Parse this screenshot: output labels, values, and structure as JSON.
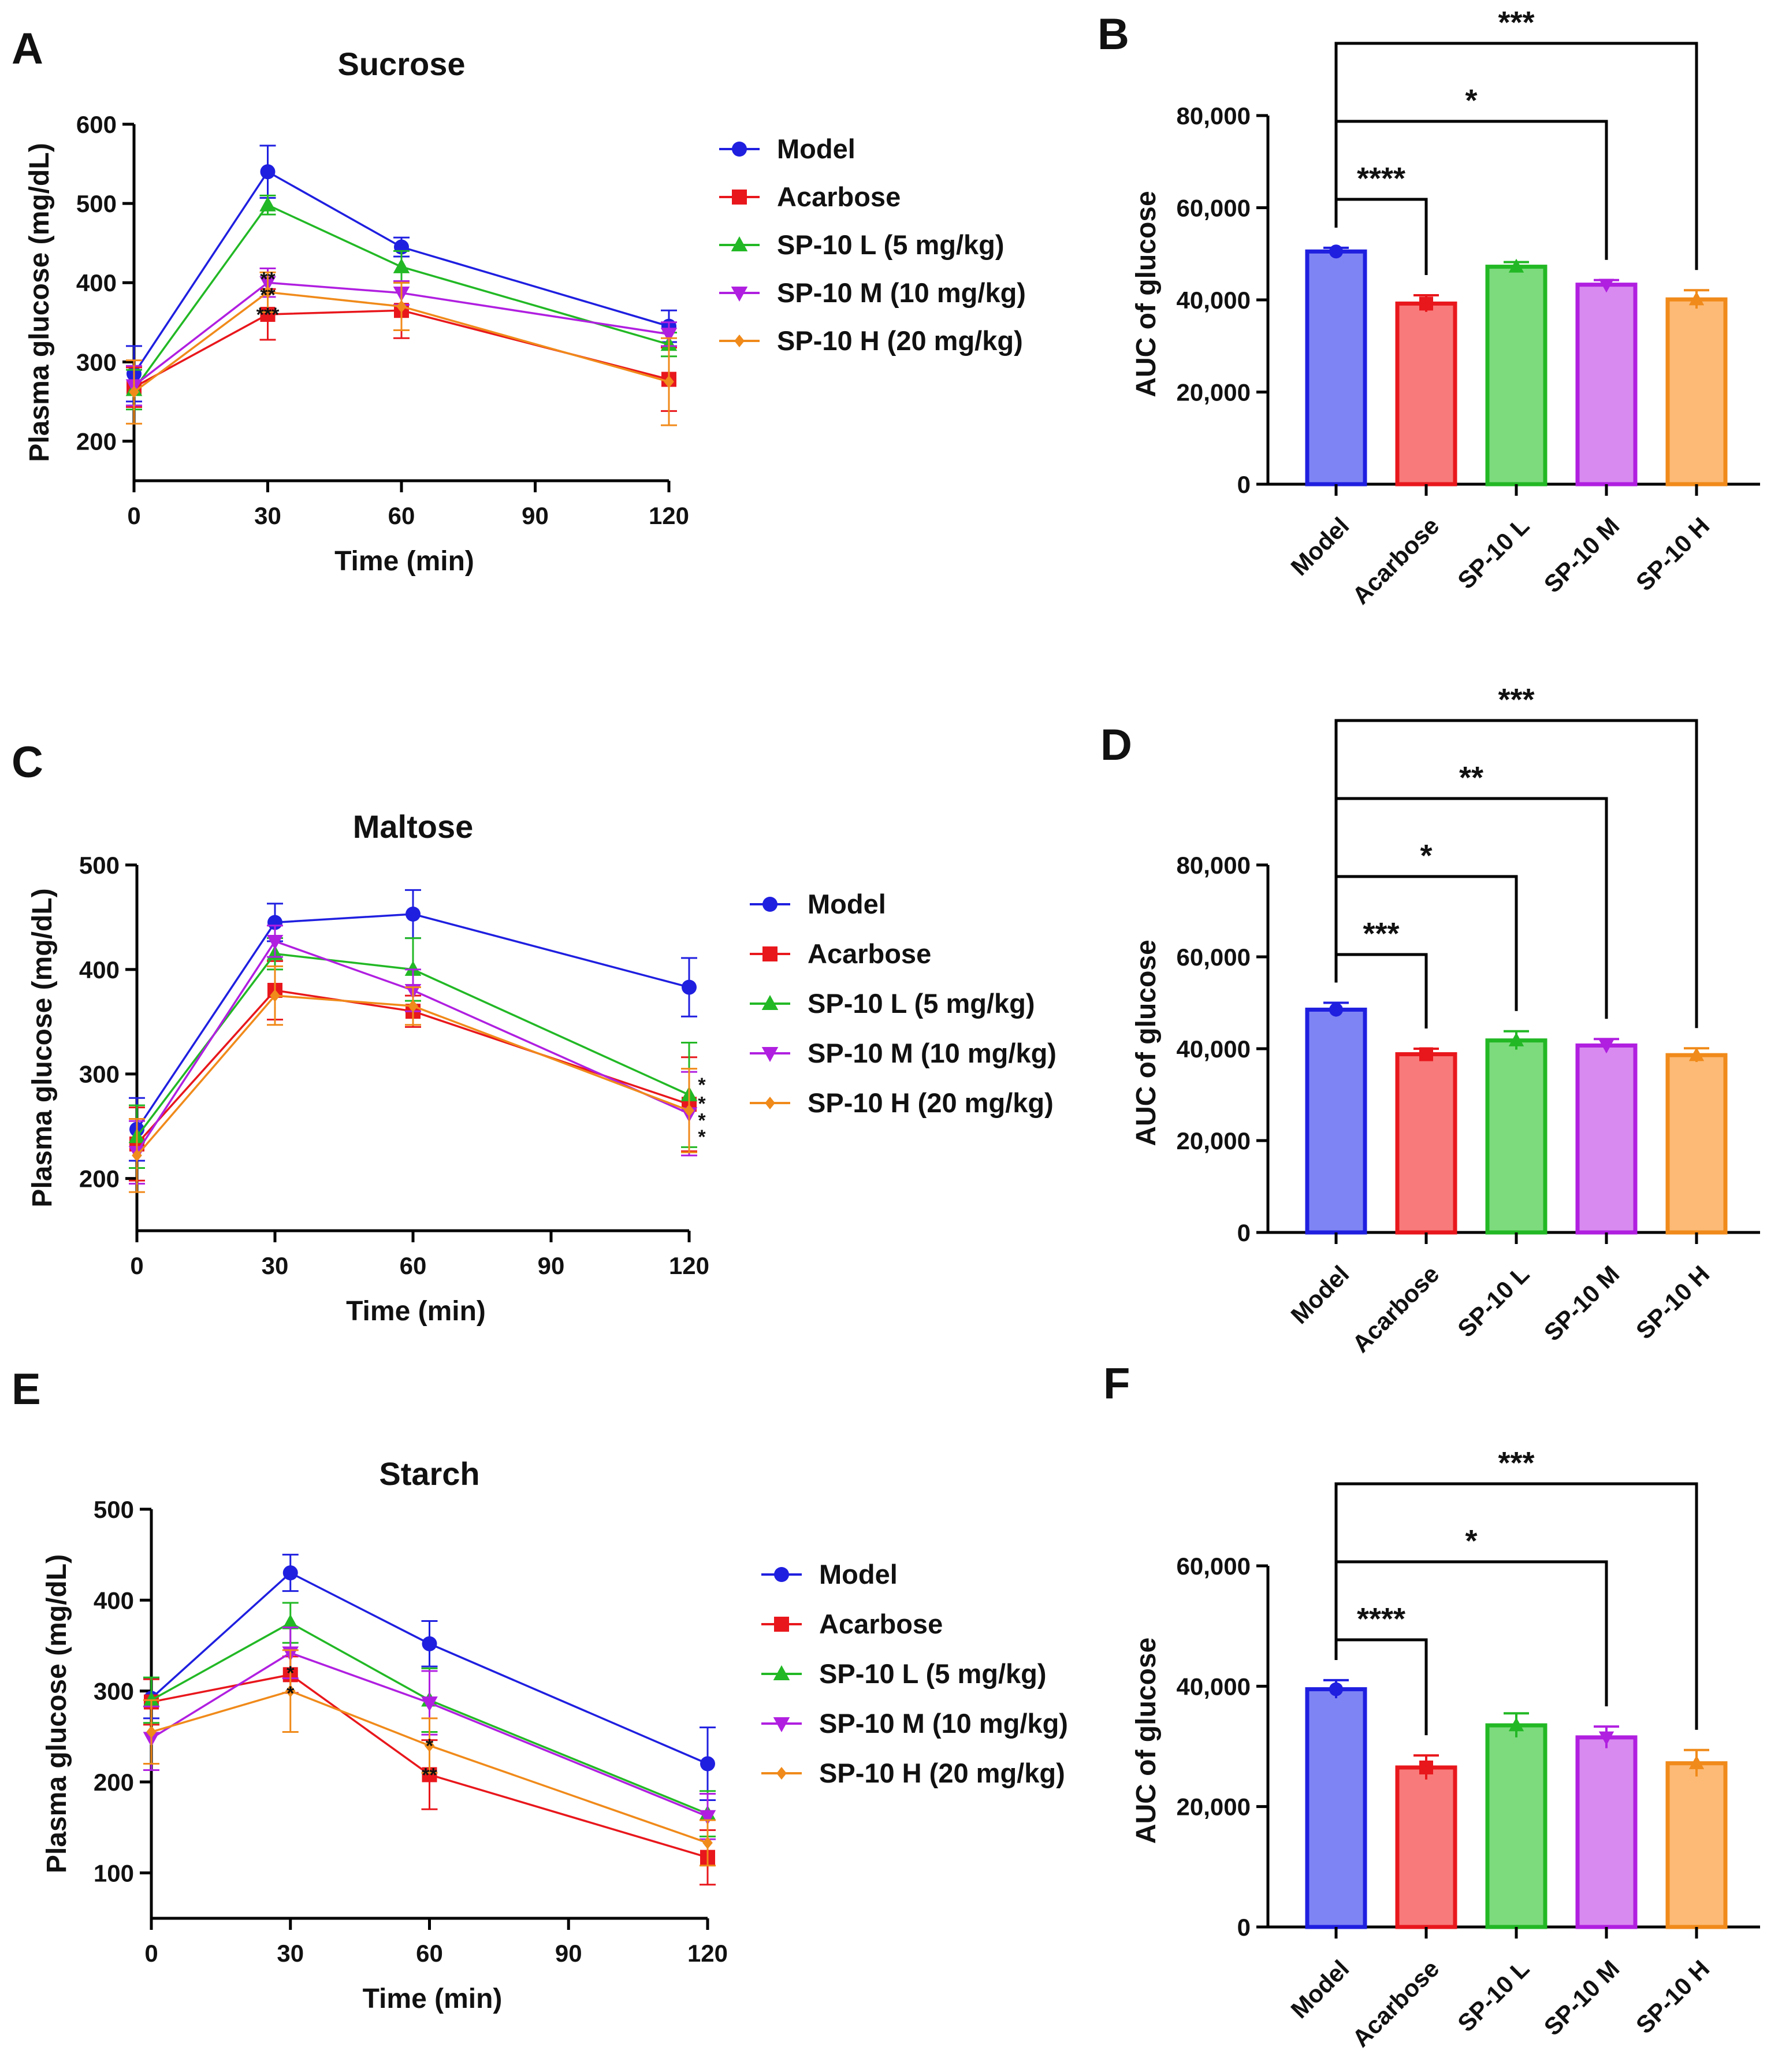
{
  "figure": {
    "panel_letters": [
      "A",
      "B",
      "C",
      "D",
      "E",
      "F"
    ]
  },
  "chart_data": [
    {
      "type": "line",
      "panel": "A",
      "title": "Sucrose",
      "xlabel": "Time (min)",
      "ylabel": "Plasma glucose (mg/dL)",
      "xlim": [
        0,
        120
      ],
      "ylim": [
        150,
        600
      ],
      "xticks": [
        0,
        30,
        60,
        90,
        120
      ],
      "yticks": [
        200,
        300,
        400,
        500,
        600
      ],
      "x": [
        0,
        30,
        60,
        120
      ],
      "series": [
        {
          "name": "Model",
          "color": "#1F1FE0",
          "marker": "circle",
          "values": [
            285,
            540,
            445,
            345
          ],
          "errors": [
            35,
            33,
            12,
            20
          ]
        },
        {
          "name": "Acarbose",
          "color": "#E8171C",
          "marker": "square",
          "values": [
            268,
            360,
            365,
            278
          ],
          "errors": [
            25,
            32,
            35,
            40
          ]
        },
        {
          "name": "SP-10 L (5 mg/kg)",
          "color": "#22B825",
          "marker": "triangle-up",
          "values": [
            265,
            498,
            420,
            322
          ],
          "errors": [
            25,
            12,
            20,
            15
          ]
        },
        {
          "name": "SP-10 M (10 mg/kg)",
          "color": "#B01FE0",
          "marker": "triangle-down",
          "values": [
            270,
            400,
            387,
            335
          ],
          "errors": [
            25,
            18,
            15,
            15
          ]
        },
        {
          "name": "SP-10 H (20 mg/kg)",
          "color": "#F08A1A",
          "marker": "diamond",
          "values": [
            262,
            388,
            370,
            275
          ],
          "errors": [
            40,
            25,
            30,
            55
          ]
        }
      ],
      "annotations": [
        {
          "x": 30,
          "text": "**",
          "y": 405
        },
        {
          "x": 30,
          "text": "**",
          "y": 385
        },
        {
          "x": 30,
          "text": "***",
          "y": 360
        }
      ],
      "legend": "right"
    },
    {
      "type": "bar",
      "panel": "B",
      "xlabel": "",
      "ylabel": "AUC of glucose",
      "ylim": [
        0,
        80000
      ],
      "yticks": [
        0,
        20000,
        40000,
        60000,
        80000
      ],
      "ytick_labels": [
        "0",
        "20,000",
        "40,000",
        "60,000",
        "80,000"
      ],
      "categories": [
        "Model",
        "Acarbose",
        "SP-10 L",
        "SP-10 M",
        "SP-10 H"
      ],
      "values": [
        50500,
        39200,
        47200,
        43300,
        40100
      ],
      "errors": [
        800,
        1800,
        1000,
        1000,
        2000
      ],
      "colors": [
        "#1F1FE0",
        "#E8171C",
        "#22B825",
        "#B01FE0",
        "#F08A1A"
      ],
      "fills": [
        "#7F84F5",
        "#F97A7A",
        "#7DDB7D",
        "#D98AF0",
        "#FDBA76"
      ],
      "significance": [
        {
          "from": 0,
          "to": 1,
          "label": "****",
          "level": 1
        },
        {
          "from": 0,
          "to": 3,
          "label": "*",
          "level": 2
        },
        {
          "from": 0,
          "to": 4,
          "label": "***",
          "level": 3
        }
      ]
    },
    {
      "type": "line",
      "panel": "C",
      "title": "Maltose",
      "xlabel": "Time (min)",
      "ylabel": "Plasma glucose (mg/dL)",
      "xlim": [
        0,
        120
      ],
      "ylim": [
        150,
        500
      ],
      "xticks": [
        0,
        30,
        60,
        90,
        120
      ],
      "yticks": [
        200,
        300,
        400,
        500
      ],
      "x": [
        0,
        30,
        60,
        120
      ],
      "series": [
        {
          "name": "Model",
          "color": "#1F1FE0",
          "marker": "circle",
          "values": [
            247,
            445,
            453,
            383
          ],
          "errors": [
            30,
            18,
            23,
            28
          ]
        },
        {
          "name": "Acarbose",
          "color": "#E8171C",
          "marker": "square",
          "values": [
            233,
            380,
            360,
            271
          ],
          "errors": [
            35,
            28,
            15,
            45
          ]
        },
        {
          "name": "SP-10 L (5 mg/kg)",
          "color": "#22B825",
          "marker": "triangle-up",
          "values": [
            240,
            415,
            400,
            280
          ],
          "errors": [
            30,
            15,
            30,
            50
          ]
        },
        {
          "name": "SP-10 M (10 mg/kg)",
          "color": "#B01FE0",
          "marker": "triangle-down",
          "values": [
            225,
            427,
            380,
            262
          ],
          "errors": [
            30,
            15,
            20,
            40
          ]
        },
        {
          "name": "SP-10 H (20 mg/kg)",
          "color": "#F08A1A",
          "marker": "diamond",
          "values": [
            222,
            375,
            365,
            265
          ],
          "errors": [
            35,
            28,
            18,
            40
          ]
        }
      ],
      "annotations": [
        {
          "x": 120,
          "text": "*",
          "y": 290
        },
        {
          "x": 120,
          "text": "*",
          "y": 272
        },
        {
          "x": 120,
          "text": "*",
          "y": 256
        },
        {
          "x": 120,
          "text": "*",
          "y": 240
        }
      ],
      "legend": "right"
    },
    {
      "type": "bar",
      "panel": "D",
      "xlabel": "",
      "ylabel": "AUC of glucose",
      "ylim": [
        0,
        80000
      ],
      "yticks": [
        0,
        20000,
        40000,
        60000,
        80000
      ],
      "ytick_labels": [
        "0",
        "20,000",
        "40,000",
        "60,000",
        "80,000"
      ],
      "categories": [
        "Model",
        "Acarbose",
        "SP-10 L",
        "SP-10 M",
        "SP-10 H"
      ],
      "values": [
        48500,
        38800,
        41800,
        40700,
        38600
      ],
      "errors": [
        1500,
        1200,
        2000,
        1400,
        1500
      ],
      "colors": [
        "#1F1FE0",
        "#E8171C",
        "#22B825",
        "#B01FE0",
        "#F08A1A"
      ],
      "fills": [
        "#7F84F5",
        "#F97A7A",
        "#7DDB7D",
        "#D98AF0",
        "#FDBA76"
      ],
      "significance": [
        {
          "from": 0,
          "to": 1,
          "label": "***",
          "level": 1
        },
        {
          "from": 0,
          "to": 2,
          "label": "*",
          "level": 2
        },
        {
          "from": 0,
          "to": 3,
          "label": "**",
          "level": 3
        },
        {
          "from": 0,
          "to": 4,
          "label": "***",
          "level": 4
        }
      ]
    },
    {
      "type": "line",
      "panel": "E",
      "title": "Starch",
      "xlabel": "Time (min)",
      "ylabel": "Plasma glucose (mg/dL)",
      "xlim": [
        0,
        120
      ],
      "ylim": [
        50,
        500
      ],
      "xticks": [
        0,
        30,
        60,
        90,
        120
      ],
      "yticks": [
        100,
        200,
        300,
        400,
        500
      ],
      "x": [
        0,
        30,
        60,
        120
      ],
      "series": [
        {
          "name": "Model",
          "color": "#1F1FE0",
          "marker": "circle",
          "values": [
            292,
            430,
            352,
            220
          ],
          "errors": [
            22,
            20,
            25,
            40
          ]
        },
        {
          "name": "Acarbose",
          "color": "#E8171C",
          "marker": "square",
          "values": [
            288,
            318,
            208,
            117
          ],
          "errors": [
            25,
            20,
            38,
            30
          ]
        },
        {
          "name": "SP-10 L (5 mg/kg)",
          "color": "#22B825",
          "marker": "triangle-up",
          "values": [
            290,
            375,
            290,
            165
          ],
          "errors": [
            25,
            22,
            35,
            25
          ]
        },
        {
          "name": "SP-10 M (10 mg/kg)",
          "color": "#B01FE0",
          "marker": "triangle-down",
          "values": [
            248,
            342,
            287,
            162
          ],
          "errors": [
            35,
            28,
            35,
            25
          ]
        },
        {
          "name": "SP-10 H (20 mg/kg)",
          "color": "#F08A1A",
          "marker": "diamond",
          "values": [
            255,
            300,
            240,
            133
          ],
          "errors": [
            35,
            45,
            30,
            25
          ]
        }
      ],
      "annotations": [
        {
          "x": 30,
          "text": "*",
          "y": 320
        },
        {
          "x": 30,
          "text": "*",
          "y": 298
        },
        {
          "x": 60,
          "text": "*",
          "y": 240
        },
        {
          "x": 60,
          "text": "**",
          "y": 208
        }
      ],
      "legend": "right"
    },
    {
      "type": "bar",
      "panel": "F",
      "xlabel": "",
      "ylabel": "AUC of glucose",
      "ylim": [
        0,
        60000
      ],
      "yticks": [
        0,
        20000,
        40000,
        60000
      ],
      "ytick_labels": [
        "0",
        "20,000",
        "40,000",
        "60,000"
      ],
      "categories": [
        "Model",
        "Acarbose",
        "SP-10 L",
        "SP-10 M",
        "SP-10 H"
      ],
      "values": [
        39500,
        26500,
        33500,
        31500,
        27200
      ],
      "errors": [
        1500,
        2000,
        2000,
        1800,
        2200
      ],
      "colors": [
        "#1F1FE0",
        "#E8171C",
        "#22B825",
        "#B01FE0",
        "#F08A1A"
      ],
      "fills": [
        "#7F84F5",
        "#F97A7A",
        "#7DDB7D",
        "#D98AF0",
        "#FDBA76"
      ],
      "significance": [
        {
          "from": 0,
          "to": 1,
          "label": "****",
          "level": 1
        },
        {
          "from": 0,
          "to": 3,
          "label": "*",
          "level": 2
        },
        {
          "from": 0,
          "to": 4,
          "label": "***",
          "level": 3
        }
      ]
    }
  ]
}
